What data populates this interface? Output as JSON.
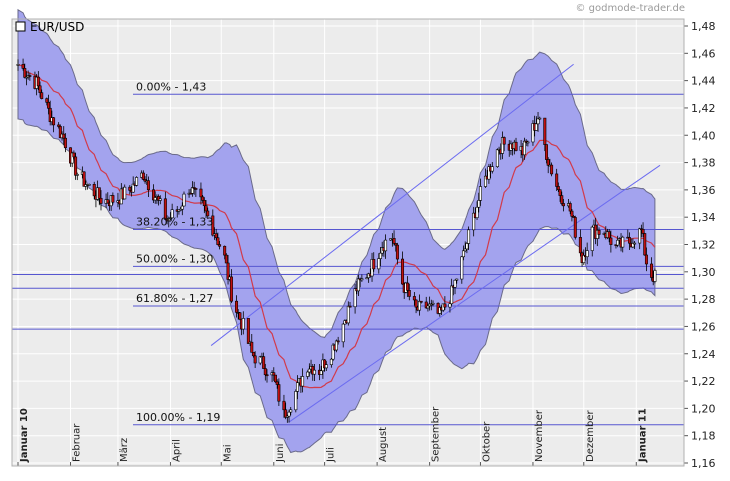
{
  "copyright": "© godmode-trader.de",
  "legend_label": "EUR/USD",
  "colors": {
    "background": "#ececec",
    "grid": "#ffffff",
    "band_fill": "#a3a3ee",
    "band_stroke": "#6a6a8a",
    "moving_average": "#d23a4a",
    "level_line": "#5656d0",
    "channel_line": "#6b6bf0",
    "candle_up": "#ffffff",
    "candle_down": "#c01010",
    "candle_outline": "#000000"
  },
  "chart_data": {
    "type": "candlestick",
    "title": "",
    "series_name": "EUR/USD",
    "y_ticks": [
      "1,48",
      "1,46",
      "1,44",
      "1,42",
      "1,40",
      "1,38",
      "1,36",
      "1,34",
      "1,32",
      "1,30",
      "1,28",
      "1,26",
      "1,24",
      "1,22",
      "1,20",
      "1,18",
      "1,16"
    ],
    "ylim": [
      1.16,
      1.48
    ],
    "x_range": [
      "2010-01-01",
      "2011-01-15"
    ],
    "months": [
      {
        "label": "Januar 10",
        "date": "2010-01-01",
        "bold": true
      },
      {
        "label": "Februar",
        "date": "2010-02-01",
        "bold": false
      },
      {
        "label": "März",
        "date": "2010-03-01",
        "bold": false
      },
      {
        "label": "April",
        "date": "2010-04-01",
        "bold": false
      },
      {
        "label": "Mai",
        "date": "2010-05-01",
        "bold": false
      },
      {
        "label": "Juni",
        "date": "2010-06-01",
        "bold": false
      },
      {
        "label": "Juli",
        "date": "2010-07-01",
        "bold": false
      },
      {
        "label": "August",
        "date": "2010-08-01",
        "bold": false
      },
      {
        "label": "September",
        "date": "2010-09-01",
        "bold": false
      },
      {
        "label": "Oktober",
        "date": "2010-10-01",
        "bold": false
      },
      {
        "label": "November",
        "date": "2010-11-01",
        "bold": false
      },
      {
        "label": "Dezember",
        "date": "2010-12-01",
        "bold": false
      },
      {
        "label": "Januar 11",
        "date": "2011-01-01",
        "bold": true
      }
    ],
    "fibonacci_levels": [
      {
        "label": "0.00% - 1,43",
        "value": 1.43
      },
      {
        "label": "38.20% - 1,33",
        "value": 1.331
      },
      {
        "label": "50.00% - 1,30",
        "value": 1.304
      },
      {
        "label": "61.80% - 1,27",
        "value": 1.275
      },
      {
        "label": "100.00% - 1,19",
        "value": 1.188
      }
    ],
    "extra_levels": [
      1.298,
      1.288,
      1.258
    ],
    "channel_lines": [
      {
        "from": {
          "date": "2010-04-25",
          "value": 1.246
        },
        "to": {
          "date": "2010-11-25",
          "value": 1.452
        }
      },
      {
        "from": {
          "date": "2010-06-10",
          "value": 1.19
        },
        "to": {
          "date": "2011-01-15",
          "value": 1.378
        }
      }
    ],
    "price_path": [
      [
        "2010-01-01",
        1.452
      ],
      [
        "2010-01-05",
        1.447
      ],
      [
        "2010-01-12",
        1.438
      ],
      [
        "2010-01-20",
        1.415
      ],
      [
        "2010-01-28",
        1.398
      ],
      [
        "2010-02-05",
        1.372
      ],
      [
        "2010-02-12",
        1.362
      ],
      [
        "2010-02-20",
        1.352
      ],
      [
        "2010-02-28",
        1.353
      ],
      [
        "2010-03-08",
        1.36
      ],
      [
        "2010-03-16",
        1.372
      ],
      [
        "2010-03-22",
        1.358
      ],
      [
        "2010-03-30",
        1.338
      ],
      [
        "2010-04-06",
        1.346
      ],
      [
        "2010-04-12",
        1.362
      ],
      [
        "2010-04-20",
        1.348
      ],
      [
        "2010-04-27",
        1.33
      ],
      [
        "2010-05-03",
        1.31
      ],
      [
        "2010-05-08",
        1.278
      ],
      [
        "2010-05-14",
        1.26
      ],
      [
        "2010-05-19",
        1.24
      ],
      [
        "2010-05-26",
        1.232
      ],
      [
        "2010-06-01",
        1.222
      ],
      [
        "2010-06-07",
        1.195
      ],
      [
        "2010-06-14",
        1.212
      ],
      [
        "2010-06-21",
        1.232
      ],
      [
        "2010-06-28",
        1.228
      ],
      [
        "2010-07-05",
        1.242
      ],
      [
        "2010-07-12",
        1.262
      ],
      [
        "2010-07-20",
        1.288
      ],
      [
        "2010-07-28",
        1.302
      ],
      [
        "2010-08-04",
        1.32
      ],
      [
        "2010-08-10",
        1.326
      ],
      [
        "2010-08-16",
        1.292
      ],
      [
        "2010-08-24",
        1.272
      ],
      [
        "2010-08-31",
        1.275
      ],
      [
        "2010-09-07",
        1.268
      ],
      [
        "2010-09-14",
        1.284
      ],
      [
        "2010-09-21",
        1.312
      ],
      [
        "2010-09-28",
        1.345
      ],
      [
        "2010-10-05",
        1.372
      ],
      [
        "2010-10-12",
        1.392
      ],
      [
        "2010-10-19",
        1.395
      ],
      [
        "2010-10-26",
        1.388
      ],
      [
        "2010-11-04",
        1.413
      ],
      [
        "2010-11-10",
        1.382
      ],
      [
        "2010-11-16",
        1.36
      ],
      [
        "2010-11-23",
        1.345
      ],
      [
        "2010-11-30",
        1.31
      ],
      [
        "2010-12-06",
        1.33
      ],
      [
        "2010-12-13",
        1.33
      ],
      [
        "2010-12-20",
        1.318
      ],
      [
        "2010-12-28",
        1.322
      ],
      [
        "2011-01-04",
        1.33
      ],
      [
        "2011-01-08",
        1.3
      ],
      [
        "2011-01-12",
        1.296
      ]
    ],
    "band_width_path": [
      [
        "2010-01-01",
        0.04
      ],
      [
        "2010-02-01",
        0.032
      ],
      [
        "2010-03-01",
        0.022
      ],
      [
        "2010-04-01",
        0.03
      ],
      [
        "2010-04-25",
        0.035
      ],
      [
        "2010-05-15",
        0.075
      ],
      [
        "2010-06-05",
        0.06
      ],
      [
        "2010-07-01",
        0.035
      ],
      [
        "2010-07-25",
        0.05
      ],
      [
        "2010-08-15",
        0.055
      ],
      [
        "2010-09-05",
        0.032
      ],
      [
        "2010-10-01",
        0.065
      ],
      [
        "2010-10-25",
        0.07
      ],
      [
        "2010-11-15",
        0.06
      ],
      [
        "2010-12-10",
        0.04
      ],
      [
        "2011-01-15",
        0.035
      ]
    ]
  }
}
